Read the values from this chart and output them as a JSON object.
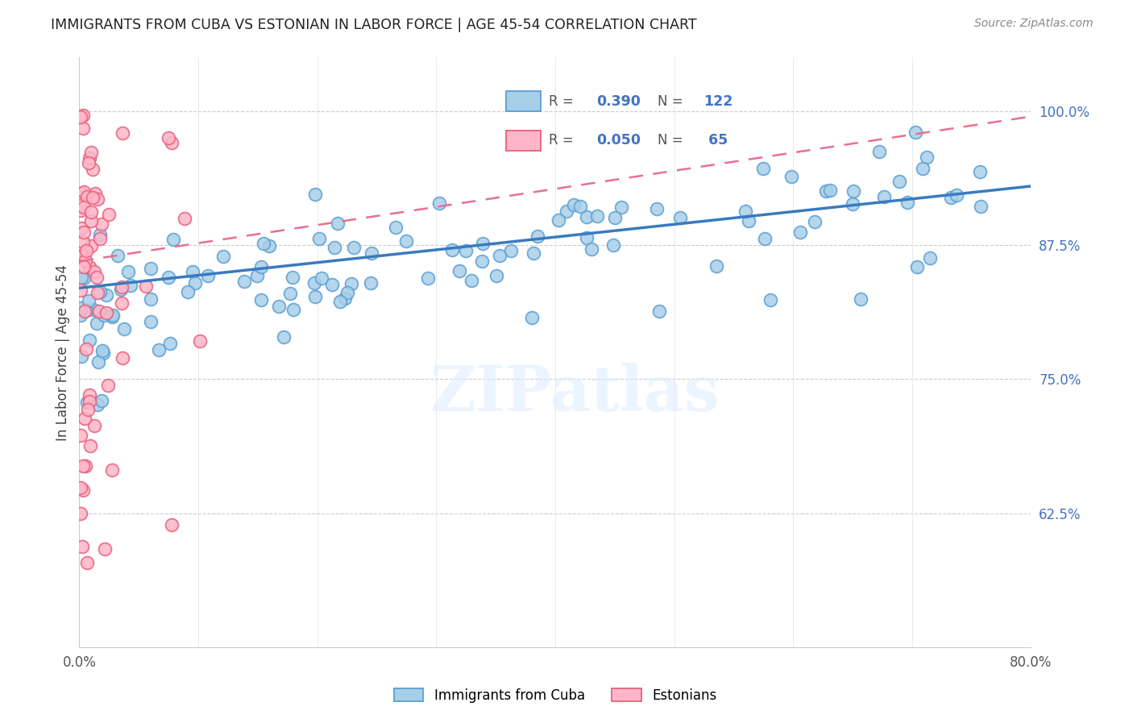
{
  "title": "IMMIGRANTS FROM CUBA VS ESTONIAN IN LABOR FORCE | AGE 45-54 CORRELATION CHART",
  "source": "Source: ZipAtlas.com",
  "ylabel": "In Labor Force | Age 45-54",
  "right_yticks": [
    1.0,
    0.875,
    0.75,
    0.625
  ],
  "right_yticklabels": [
    "100.0%",
    "87.5%",
    "75.0%",
    "62.5%"
  ],
  "cuba_dot_color": "#a8cfe8",
  "cuba_edge_color": "#5a9fd4",
  "estonian_dot_color": "#ffb6c8",
  "estonian_edge_color": "#e8607a",
  "cuba_line_color": "#3a7abf",
  "estonian_line_color": "#e87090",
  "watermark": "ZIPatlas",
  "xlim": [
    0.0,
    0.8
  ],
  "ylim": [
    0.5,
    1.05
  ],
  "background_color": "#ffffff",
  "right_axis_color": "#4472c4",
  "legend_cuba_R": "0.390",
  "legend_cuba_N": "122",
  "legend_est_R": "0.050",
  "legend_est_N": " 65",
  "legend_label_color": "#555555",
  "legend_value_color": "#4472c4"
}
